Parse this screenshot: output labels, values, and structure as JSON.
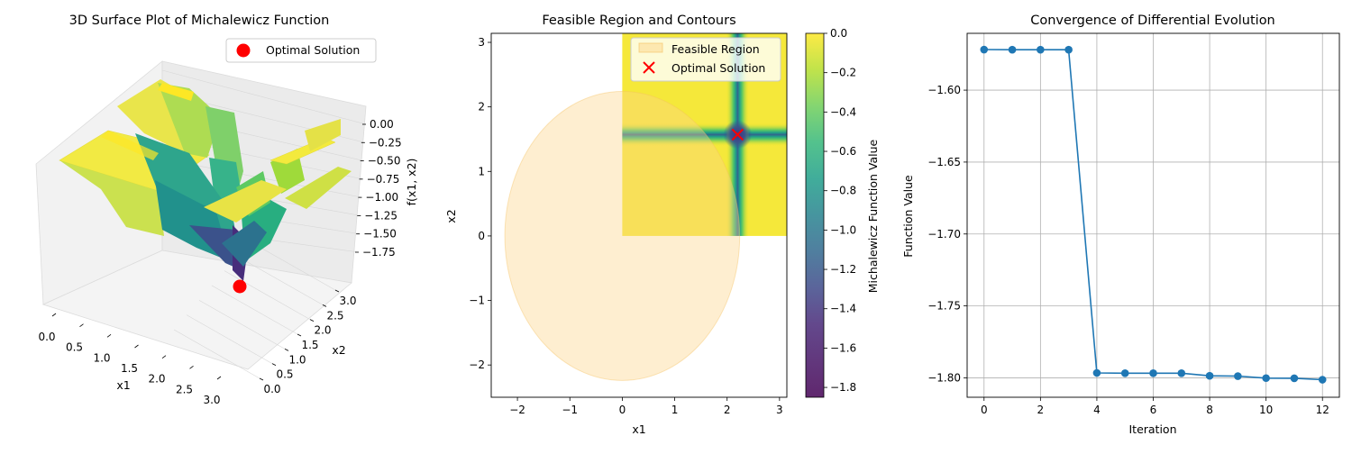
{
  "panels": {
    "surface": {
      "title": "3D Surface Plot of Michalewicz Function",
      "xlabel": "x1",
      "ylabel": "x2",
      "zlabel": "f(x1, x2)",
      "legend": "Optimal Solution",
      "xticks": [
        "0.0",
        "0.5",
        "1.0",
        "1.5",
        "2.0",
        "2.5",
        "3.0"
      ],
      "yticks": [
        "0.0",
        "0.5",
        "1.0",
        "1.5",
        "2.0",
        "2.5",
        "3.0"
      ],
      "zticks": [
        "0.00",
        "−0.25",
        "−0.50",
        "−0.75",
        "−1.00",
        "−1.25",
        "−1.50",
        "−1.75"
      ],
      "optimum": {
        "x1": 2.2,
        "x2": 1.57,
        "f": -1.8
      }
    },
    "contour": {
      "title": "Feasible Region and Contours",
      "xlabel": "x1",
      "ylabel": "x2",
      "legend_region": "Feasible Region",
      "legend_opt": "Optimal Solution",
      "colorbar_label": "Michalewicz Function Value",
      "xlim": [
        -2.5,
        3.14
      ],
      "ylim": [
        -2.5,
        3.14
      ],
      "xticks": [
        -2,
        -1,
        0,
        1,
        2,
        3
      ],
      "yticks": [
        -2,
        -1,
        0,
        1,
        2,
        3
      ],
      "feasible_radius": 2.24,
      "optimum": {
        "x1": 2.2,
        "x2": 1.57
      },
      "colorbar_range": [
        -1.85,
        0.0
      ],
      "colorbar_ticks": [
        "0.0",
        "−0.2",
        "−0.4",
        "−0.6",
        "−0.8",
        "−1.0",
        "−1.2",
        "−1.4",
        "−1.6",
        "−1.8"
      ]
    }
  },
  "chart_data": {
    "type": "line",
    "title": "Convergence of Differential Evolution",
    "xlabel": "Iteration",
    "ylabel": "Function Value",
    "x": [
      0,
      1,
      2,
      3,
      4,
      5,
      6,
      7,
      8,
      9,
      10,
      11,
      12
    ],
    "series": [
      {
        "values": [
          -1.5718,
          -1.5719,
          -1.5719,
          -1.5719,
          -1.7966,
          -1.7968,
          -1.7968,
          -1.7968,
          -1.7986,
          -1.7988,
          -1.8002,
          -1.8003,
          -1.8013
        ]
      }
    ],
    "xlim": [
      -0.6,
      12.6
    ],
    "ylim": [
      -1.8135,
      -1.5605
    ],
    "xticks": [
      0,
      2,
      4,
      6,
      8,
      10,
      12
    ],
    "yticks": [
      "−1.60",
      "−1.65",
      "−1.70",
      "−1.75",
      "−1.80"
    ],
    "ytick_values": [
      -1.6,
      -1.65,
      -1.7,
      -1.75,
      -1.8
    ],
    "grid": true,
    "color": "#1f77b4"
  }
}
